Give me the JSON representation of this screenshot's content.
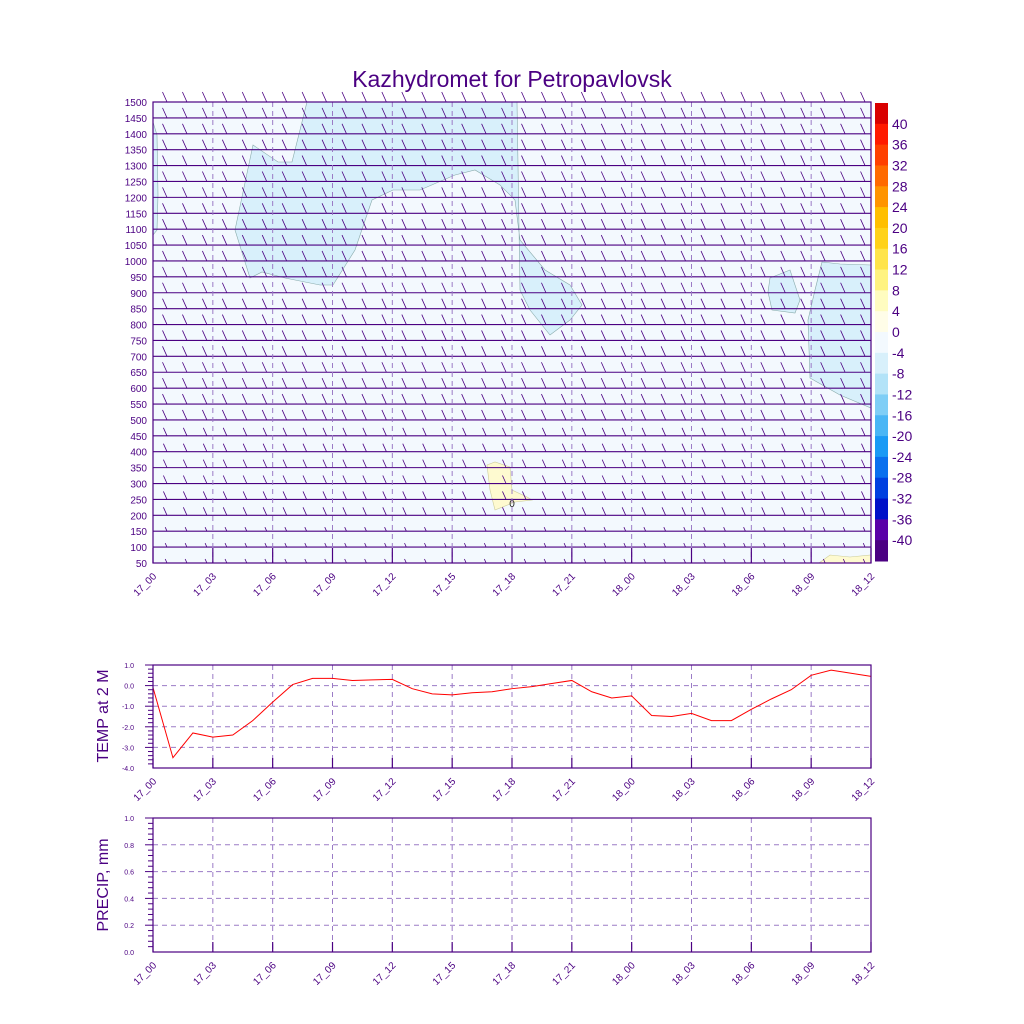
{
  "title": "Kazhydromet for Petropavlovsk",
  "colors": {
    "axis": "#4b0082",
    "line": "#ff0000",
    "bg_field": "#f3f9fe",
    "cold_field": "#d8f0fb",
    "warm_field": "#fefad0"
  },
  "chart_data": [
    {
      "type": "heatmap",
      "name": "cross-section",
      "title": "Kazhydromet for Petropavlovsk",
      "x_ticks": [
        "17_00",
        "17_03",
        "17_06",
        "17_09",
        "17_12",
        "17_15",
        "17_18",
        "17_21",
        "18_00",
        "18_03",
        "18_06",
        "18_09",
        "18_12"
      ],
      "y_ticks": [
        50,
        100,
        150,
        200,
        250,
        300,
        350,
        400,
        450,
        500,
        550,
        600,
        650,
        700,
        750,
        800,
        850,
        900,
        950,
        1000,
        1050,
        1100,
        1150,
        1200,
        1250,
        1300,
        1350,
        1400,
        1450,
        1500
      ],
      "ylim": [
        50,
        1500
      ],
      "contour_label": "0",
      "colorbar": {
        "labels": [
          "40",
          "36",
          "32",
          "28",
          "24",
          "20",
          "16",
          "12",
          "8",
          "4",
          "0",
          "-4",
          "-8",
          "-12",
          "-16",
          "-20",
          "-24",
          "-28",
          "-32",
          "-36",
          "-40"
        ],
        "colors": [
          "#d90000",
          "#ff1a00",
          "#ff4000",
          "#ff6a00",
          "#ff9400",
          "#ffbf00",
          "#ffd21a",
          "#ffe44a",
          "#fff380",
          "#fffcc0",
          "#fffde8",
          "#f3f9fe",
          "#d8f0fb",
          "#b3e3f8",
          "#7fcef6",
          "#4ab6f5",
          "#1a9af5",
          "#0a70ee",
          "#0040e0",
          "#0010c8",
          "#5a00a8",
          "#4b0082"
        ]
      }
    },
    {
      "type": "line",
      "name": "temperature",
      "ylabel": "TEMP at 2 M",
      "ylim": [
        -4,
        1
      ],
      "y_ticks": [
        "1.0",
        "0.0",
        "-1.0",
        "-2.0",
        "-3.0",
        "-4.0"
      ],
      "x_ticks": [
        "17_00",
        "17_03",
        "17_06",
        "17_09",
        "17_12",
        "17_15",
        "17_18",
        "17_21",
        "18_00",
        "18_03",
        "18_06",
        "18_09",
        "18_12"
      ],
      "x_hours": [
        0,
        1,
        2,
        3,
        4,
        5,
        6,
        7,
        8,
        9,
        10,
        11,
        12,
        13,
        14,
        15,
        16,
        17,
        18,
        19,
        20,
        21,
        22,
        23,
        24,
        25,
        26,
        27,
        28,
        29,
        30,
        31,
        32,
        33,
        34,
        35,
        36
      ],
      "values": [
        -0.1,
        -3.5,
        -2.3,
        -2.5,
        -2.4,
        -1.7,
        -0.8,
        0.05,
        0.35,
        0.35,
        0.25,
        0.28,
        0.3,
        -0.15,
        -0.4,
        -0.45,
        -0.35,
        -0.3,
        -0.15,
        -0.05,
        0.1,
        0.25,
        -0.3,
        -0.6,
        -0.5,
        -1.45,
        -1.5,
        -1.35,
        -1.7,
        -1.7,
        -1.15,
        -0.65,
        -0.2,
        0.5,
        0.75,
        0.6,
        0.45
      ]
    },
    {
      "type": "line",
      "name": "precipitation",
      "ylabel": "PRECIP, mm",
      "ylim": [
        0,
        1
      ],
      "y_ticks": [
        "1.0",
        "0.8",
        "0.6",
        "0.4",
        "0.2",
        "0.0"
      ],
      "x_ticks": [
        "17_00",
        "17_03",
        "17_06",
        "17_09",
        "17_12",
        "17_15",
        "17_18",
        "17_21",
        "18_00",
        "18_03",
        "18_06",
        "18_09",
        "18_12"
      ],
      "values": []
    }
  ]
}
